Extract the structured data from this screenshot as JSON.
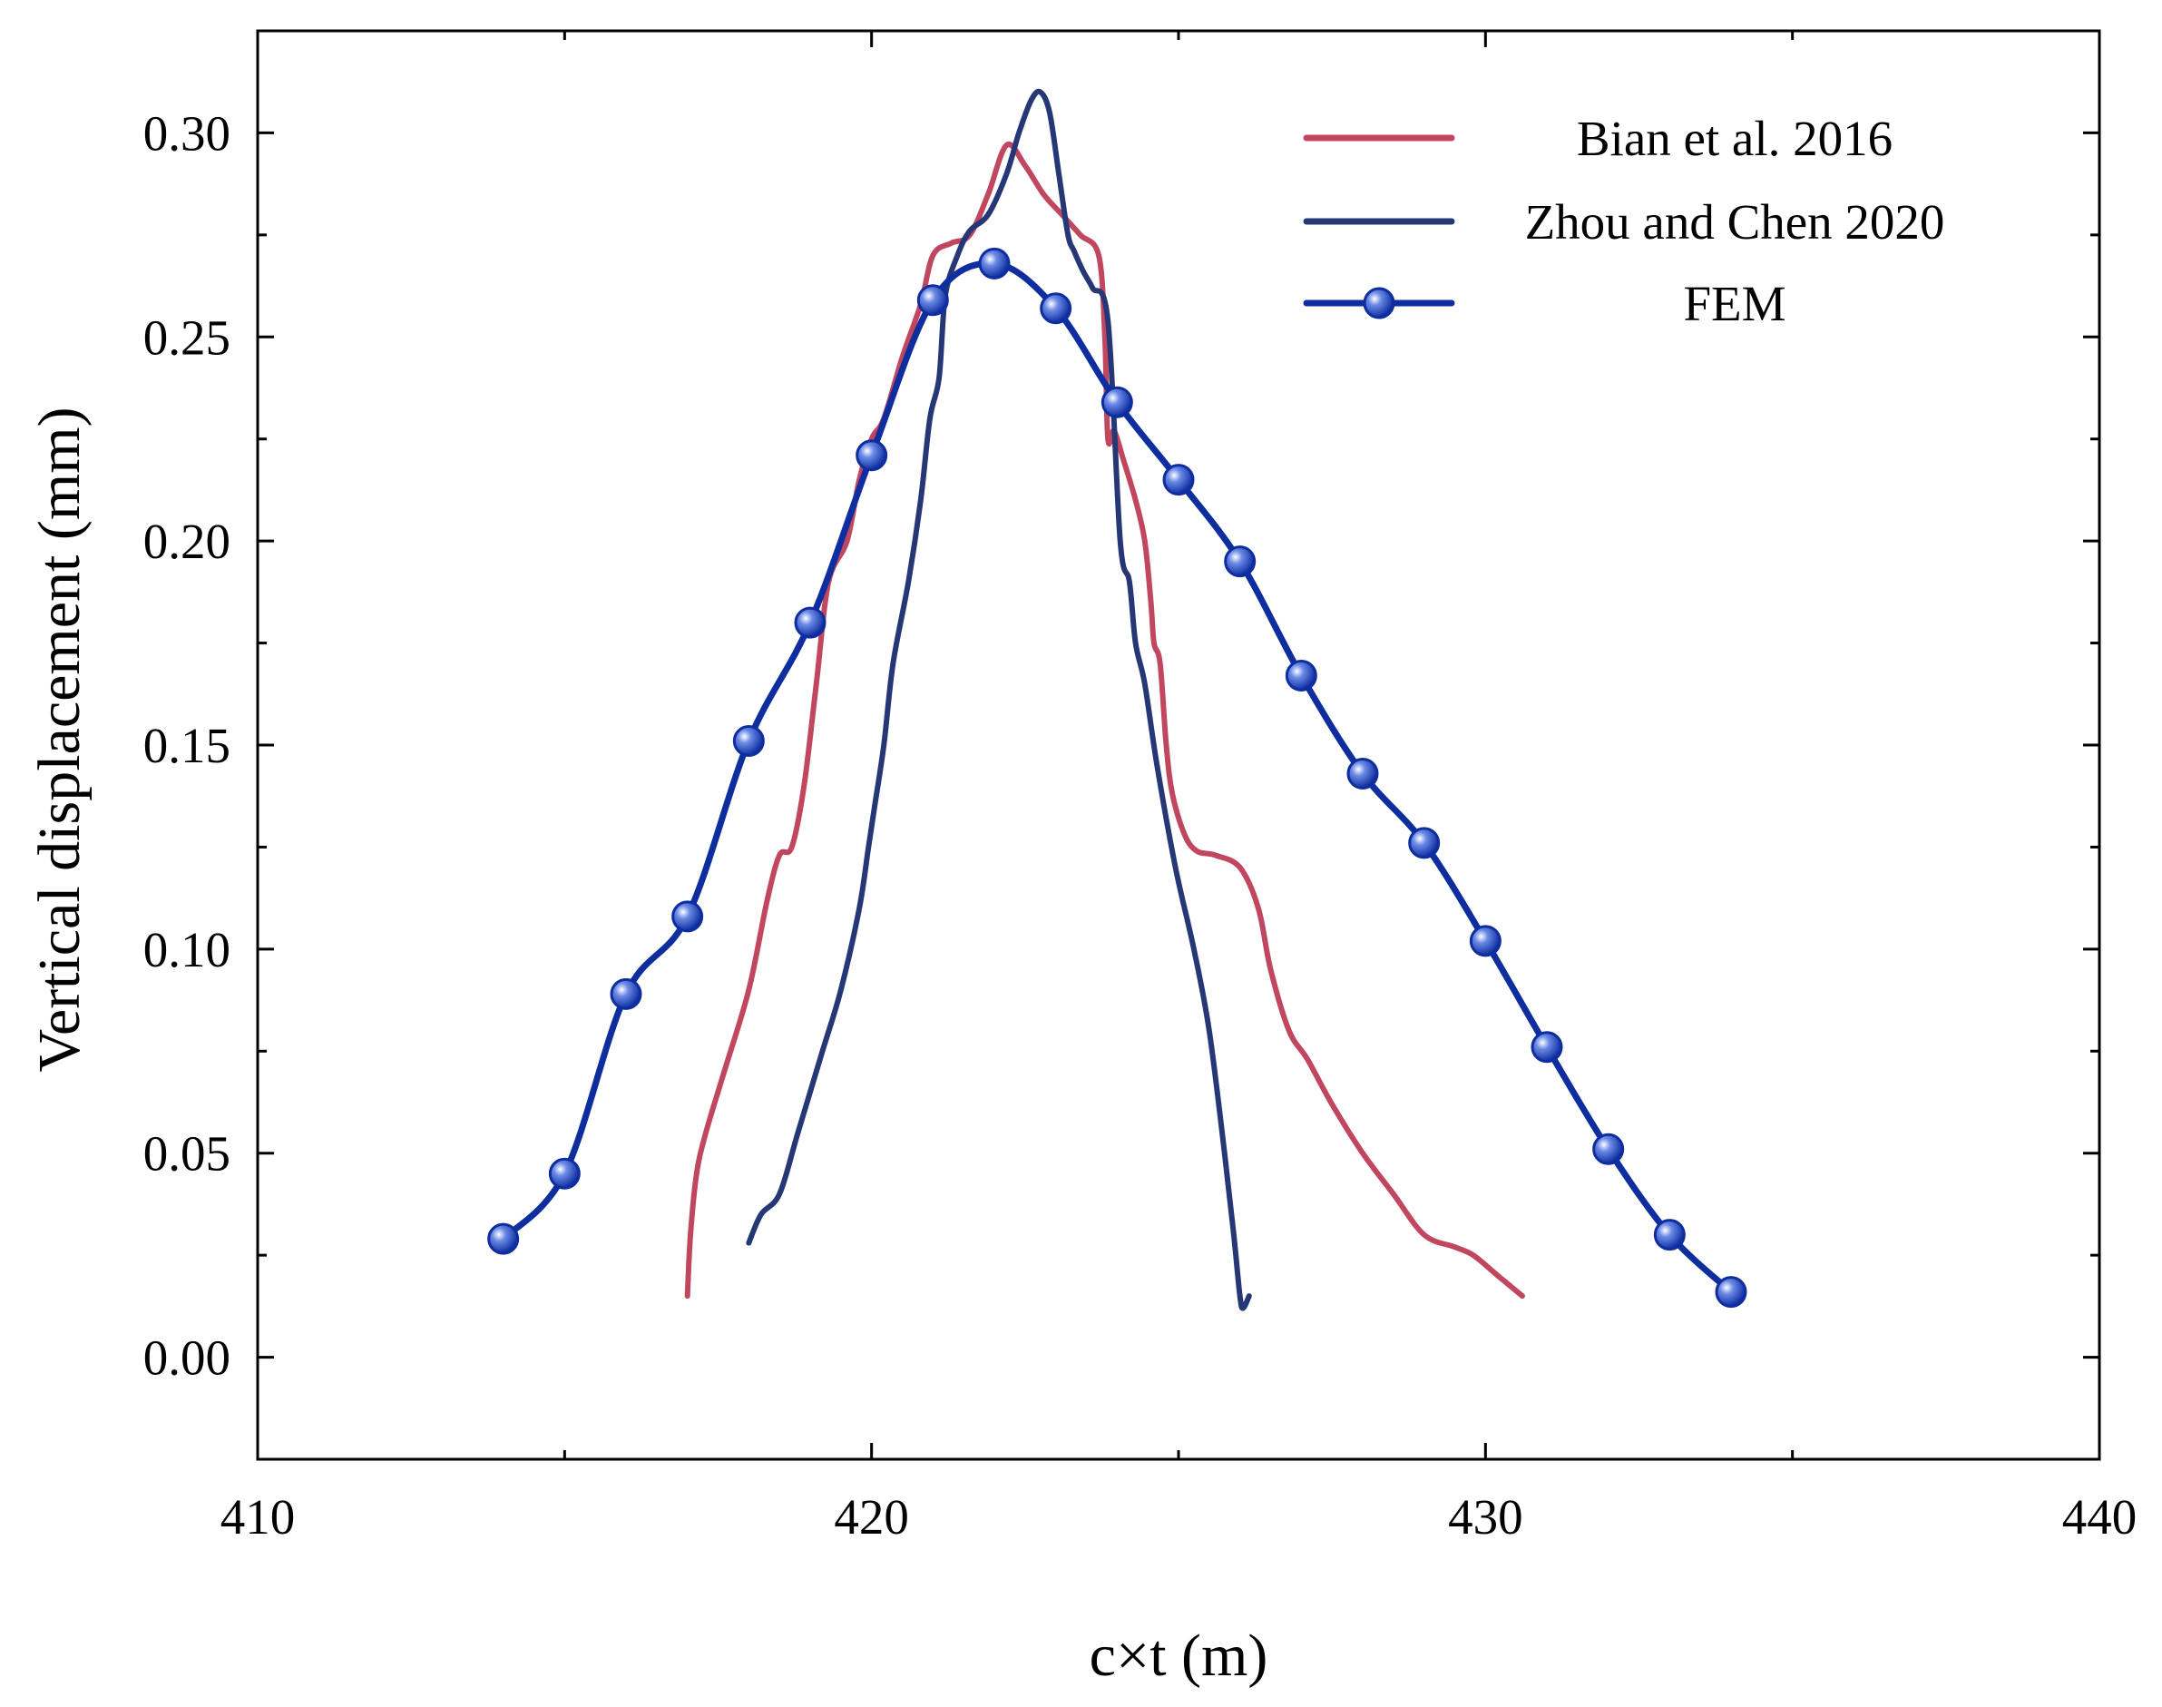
{
  "chart_data": {
    "type": "line",
    "title": "",
    "xlabel": "c×t (m)",
    "ylabel": "Vertical displacement (mm)",
    "xlim": [
      410,
      440
    ],
    "ylim": [
      -0.025,
      0.325
    ],
    "xticks": [
      410,
      420,
      430,
      440
    ],
    "xtick_labels": [
      "410",
      "420",
      "430",
      "440"
    ],
    "yticks": [
      0.0,
      0.05,
      0.1,
      0.15,
      0.2,
      0.25,
      0.3
    ],
    "ytick_labels": [
      "0.00",
      "0.05",
      "0.10",
      "0.15",
      "0.20",
      "0.25",
      "0.30"
    ],
    "grid": false,
    "legend_position": "top-right",
    "series": [
      {
        "name": "Bian et al. 2016",
        "color": "#c0475f",
        "marker": "none",
        "x": [
          417.0,
          417.05,
          417.15,
          417.3,
          417.6,
          418.0,
          418.3,
          418.5,
          418.7,
          418.9,
          419.1,
          419.3,
          419.6,
          419.8,
          420.0,
          420.2,
          420.5,
          420.8,
          421.0,
          421.3,
          421.6,
          421.9,
          422.2,
          422.5,
          422.8,
          423.1,
          423.4,
          423.7,
          423.8,
          423.85,
          423.95,
          424.1,
          424.3,
          424.45,
          424.55,
          424.6,
          424.7,
          424.8,
          424.9,
          425.1,
          425.3,
          425.6,
          426.0,
          426.3,
          426.5,
          426.8,
          427.1,
          427.5,
          428.0,
          428.5,
          429.0,
          429.5,
          429.8,
          430.2,
          430.6
        ],
        "y": [
          0.015,
          0.03,
          0.045,
          0.055,
          0.07,
          0.09,
          0.112,
          0.123,
          0.125,
          0.14,
          0.165,
          0.19,
          0.2,
          0.215,
          0.225,
          0.23,
          0.245,
          0.258,
          0.27,
          0.273,
          0.275,
          0.285,
          0.297,
          0.292,
          0.285,
          0.28,
          0.275,
          0.27,
          0.25,
          0.225,
          0.227,
          0.22,
          0.21,
          0.2,
          0.185,
          0.175,
          0.17,
          0.15,
          0.138,
          0.128,
          0.124,
          0.123,
          0.12,
          0.11,
          0.095,
          0.08,
          0.073,
          0.062,
          0.05,
          0.04,
          0.03,
          0.027,
          0.025,
          0.02,
          0.015
        ]
      },
      {
        "name": "Zhou and Chen 2020",
        "color": "#263776",
        "marker": "none",
        "x": [
          418.0,
          418.2,
          418.5,
          418.8,
          419.2,
          419.5,
          419.8,
          419.95,
          420.05,
          420.2,
          420.35,
          420.6,
          420.8,
          420.95,
          421.1,
          421.2,
          421.4,
          421.6,
          421.9,
          422.2,
          422.4,
          422.6,
          422.75,
          422.9,
          423.05,
          423.2,
          423.3,
          423.45,
          423.6,
          423.85,
          424.05,
          424.2,
          424.3,
          424.45,
          424.65,
          424.95,
          425.25,
          425.5,
          425.75,
          425.9,
          426.0,
          426.05,
          426.15
        ],
        "y": [
          0.028,
          0.035,
          0.04,
          0.055,
          0.075,
          0.09,
          0.11,
          0.125,
          0.135,
          0.15,
          0.17,
          0.19,
          0.21,
          0.23,
          0.24,
          0.26,
          0.27,
          0.276,
          0.28,
          0.29,
          0.3,
          0.308,
          0.31,
          0.305,
          0.29,
          0.275,
          0.271,
          0.266,
          0.262,
          0.254,
          0.2,
          0.19,
          0.175,
          0.165,
          0.145,
          0.12,
          0.1,
          0.08,
          0.05,
          0.03,
          0.015,
          0.012,
          0.015
        ]
      },
      {
        "name": "FEM",
        "color": "#0e2d9f",
        "marker": "circle",
        "x": [
          414,
          415,
          416,
          417,
          418,
          419,
          420,
          421,
          422,
          423,
          424,
          425,
          426,
          427,
          428,
          429,
          430,
          431,
          432,
          433,
          434
        ],
        "y": [
          0.029,
          0.045,
          0.089,
          0.108,
          0.151,
          0.18,
          0.221,
          0.259,
          0.268,
          0.257,
          0.234,
          0.215,
          0.195,
          0.167,
          0.143,
          0.126,
          0.102,
          0.076,
          0.051,
          0.03,
          0.016
        ]
      }
    ]
  }
}
